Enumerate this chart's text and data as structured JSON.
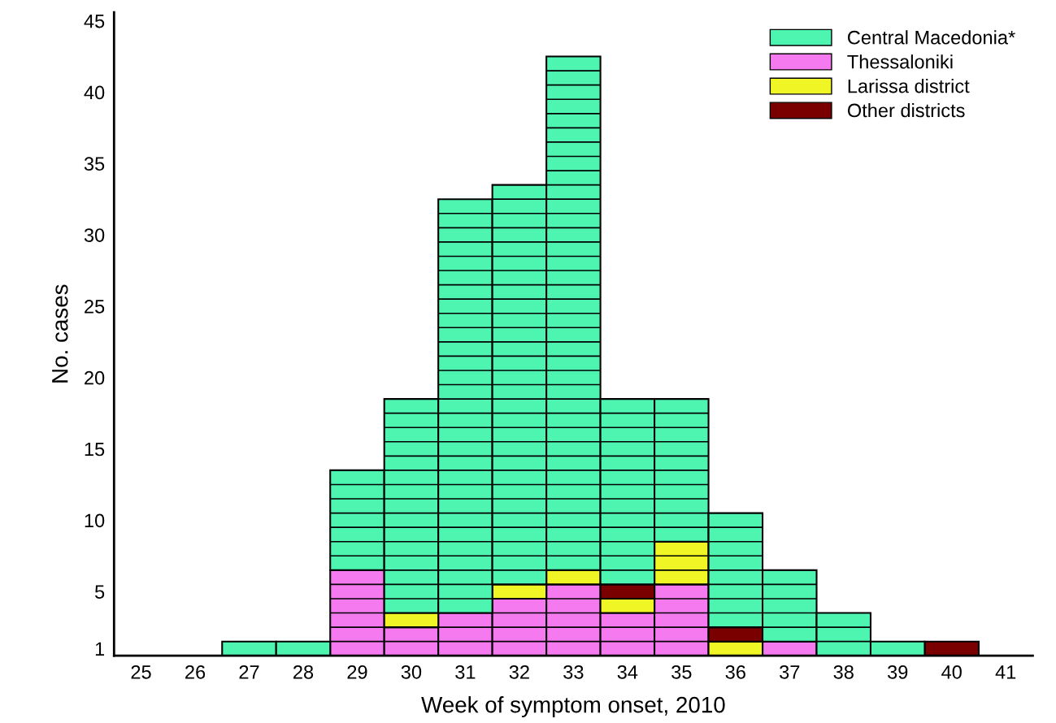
{
  "chart_data": {
    "type": "bar",
    "stacked": true,
    "xlabel": "Week of symptom onset, 2010",
    "ylabel": "No. cases",
    "categories": [
      "25",
      "26",
      "27",
      "28",
      "29",
      "30",
      "31",
      "32",
      "33",
      "34",
      "35",
      "36",
      "37",
      "38",
      "39",
      "40",
      "41"
    ],
    "series": [
      {
        "name": "Thessaloniki",
        "color": "#f57af0",
        "values": [
          0,
          0,
          0,
          0,
          6,
          2,
          3,
          4,
          5,
          3,
          5,
          0,
          1,
          0,
          0,
          0,
          0
        ]
      },
      {
        "name": "Larissa district",
        "color": "#f0f525",
        "values": [
          0,
          0,
          0,
          0,
          0,
          1,
          0,
          1,
          1,
          1,
          3,
          1,
          0,
          0,
          0,
          0,
          0
        ]
      },
      {
        "name": "Other districts",
        "color": "#7a0000",
        "values": [
          0,
          0,
          0,
          0,
          0,
          0,
          0,
          0,
          0,
          1,
          0,
          1,
          0,
          0,
          0,
          1,
          0
        ]
      },
      {
        "name": "Central Macedonia*",
        "color": "#4df5b0",
        "values": [
          0,
          0,
          1,
          1,
          7,
          15,
          29,
          28,
          36,
          13,
          10,
          8,
          5,
          3,
          1,
          0,
          0
        ]
      }
    ],
    "ylim": [
      0,
      45.1
    ],
    "yticks": [
      {
        "value": 0.5,
        "label": "1"
      },
      {
        "value": 4.5,
        "label": "5"
      },
      {
        "value": 9.5,
        "label": "10"
      },
      {
        "value": 14.5,
        "label": "15"
      },
      {
        "value": 19.5,
        "label": "20"
      },
      {
        "value": 24.5,
        "label": "25"
      },
      {
        "value": 29.5,
        "label": "30"
      },
      {
        "value": 34.5,
        "label": "35"
      },
      {
        "value": 39.5,
        "label": "40"
      },
      {
        "value": 44.5,
        "label": "45"
      }
    ],
    "legend": "top right",
    "grid": false
  }
}
